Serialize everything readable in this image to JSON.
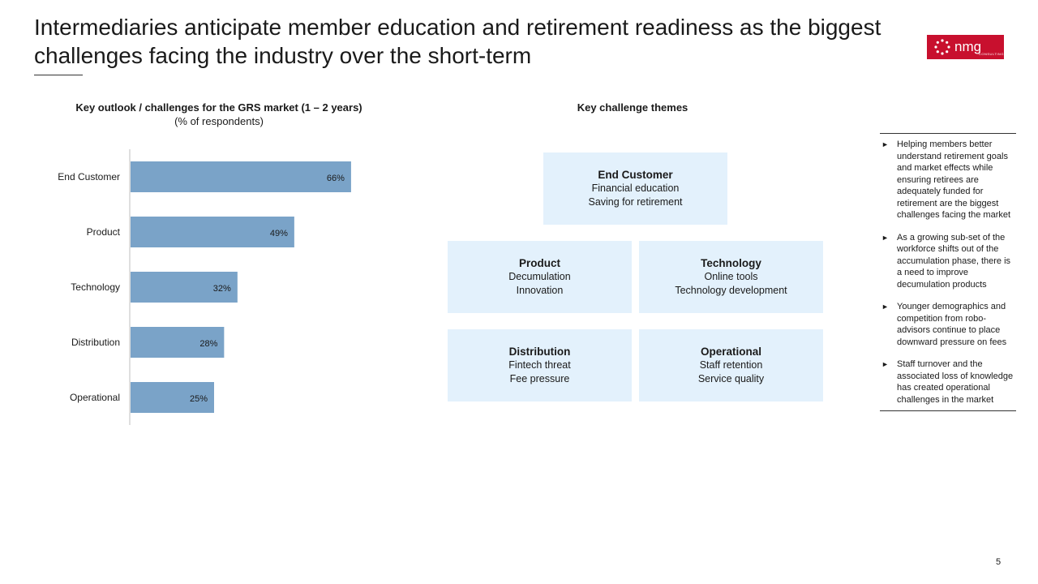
{
  "title": "Intermediaries anticipate member education and retirement readiness as the biggest challenges facing the industry over the short-term",
  "logo": {
    "text": "nmg",
    "subtext": "CONSULTING"
  },
  "colors": {
    "brand": "#c8102e",
    "bar": "#7aa3c8",
    "theme_box": "#e3f1fc"
  },
  "chart_data": {
    "type": "bar",
    "orientation": "horizontal",
    "title": "Key outlook / challenges for the GRS market (1 – 2 years)",
    "subtitle": "(% of respondents)",
    "categories": [
      "End Customer",
      "Product",
      "Technology",
      "Distribution",
      "Operational"
    ],
    "values": [
      66,
      49,
      32,
      28,
      25
    ],
    "value_labels": [
      "66%",
      "49%",
      "32%",
      "28%",
      "25%"
    ],
    "xlim": [
      0,
      100
    ],
    "grid": false
  },
  "themes": {
    "title": "Key challenge themes",
    "end_customer": {
      "head": "End Customer",
      "line1": "Financial education",
      "line2": "Saving for retirement"
    },
    "product": {
      "head": "Product",
      "line1": "Decumulation",
      "line2": "Innovation"
    },
    "technology": {
      "head": "Technology",
      "line1": "Online tools",
      "line2": "Technology development"
    },
    "distribution": {
      "head": "Distribution",
      "line1": "Fintech threat",
      "line2": "Fee pressure"
    },
    "operational": {
      "head": "Operational",
      "line1": "Staff retention",
      "line2": "Service quality"
    }
  },
  "notes": {
    "bullet_icon": "triangle-bullet",
    "items": [
      "Helping members better understand retirement goals and market effects while ensuring retirees are adequately funded for retirement are the biggest challenges facing the market",
      "As a growing sub-set of the workforce shifts out of the accumulation phase, there is a need to improve decumulation products",
      "Younger demographics and competition from robo-advisors continue to place downward pressure on fees",
      "Staff turnover and the associated loss of knowledge has created operational challenges in the market"
    ]
  },
  "page_number": "5"
}
